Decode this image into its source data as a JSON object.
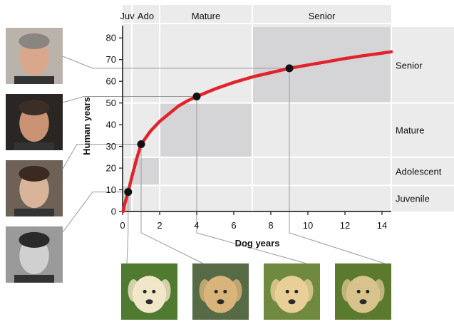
{
  "chart_data": {
    "type": "line",
    "xlabel": "Dog years",
    "ylabel": "Human years",
    "xlim": [
      0,
      14.5
    ],
    "ylim": [
      0,
      85
    ],
    "xticks": [
      0,
      2,
      4,
      6,
      8,
      10,
      12,
      14
    ],
    "yticks": [
      0,
      10,
      20,
      30,
      40,
      50,
      60,
      70,
      80
    ],
    "curve": {
      "color": "#e0242b",
      "points": [
        [
          0.03,
          0
        ],
        [
          0.1,
          3
        ],
        [
          0.2,
          6
        ],
        [
          0.3,
          9
        ],
        [
          0.5,
          16
        ],
        [
          0.75,
          24
        ],
        [
          1,
          31
        ],
        [
          1.5,
          37
        ],
        [
          2,
          41.5
        ],
        [
          2.5,
          45
        ],
        [
          3,
          48.5
        ],
        [
          3.5,
          51
        ],
        [
          4,
          53
        ],
        [
          5,
          56.5
        ],
        [
          6,
          59.5
        ],
        [
          7,
          62
        ],
        [
          8,
          64
        ],
        [
          9,
          66
        ],
        [
          10,
          67.5
        ],
        [
          11,
          69
        ],
        [
          12,
          70.5
        ],
        [
          13,
          71.8
        ],
        [
          14,
          73
        ],
        [
          14.5,
          73.6
        ]
      ]
    },
    "highlighted_points": [
      {
        "x": 0.3,
        "y": 9
      },
      {
        "x": 1,
        "y": 31
      },
      {
        "x": 4,
        "y": 53
      },
      {
        "x": 9,
        "y": 66
      }
    ],
    "dog_stages": [
      {
        "label": "Juv",
        "x_from": 0,
        "x_to": 0.5
      },
      {
        "label": "Ado",
        "x_from": 0.5,
        "x_to": 2
      },
      {
        "label": "Mature",
        "x_from": 2,
        "x_to": 7
      },
      {
        "label": "Senior",
        "x_from": 7,
        "x_to": 14.5
      }
    ],
    "human_stages": [
      {
        "label": "Juvenile",
        "y_from": 0,
        "y_to": 12
      },
      {
        "label": "Adolescent",
        "y_from": 12,
        "y_to": 25
      },
      {
        "label": "Mature",
        "y_from": 25,
        "y_to": 50
      },
      {
        "label": "Senior",
        "y_from": 50,
        "y_to": 85
      }
    ],
    "shaded_regions": [
      {
        "x_from": 0,
        "x_to": 0.5,
        "y_from": 0,
        "y_to": 12
      },
      {
        "x_from": 0.5,
        "x_to": 2,
        "y_from": 12,
        "y_to": 25
      },
      {
        "x_from": 2,
        "x_to": 7,
        "y_from": 25,
        "y_to": 50
      },
      {
        "x_from": 7,
        "x_to": 14.5,
        "y_from": 50,
        "y_to": 85
      }
    ],
    "colors": {
      "band": "#ebebeb",
      "shade": "#d5d5d8",
      "axis": "#111111",
      "point": "#111111",
      "connector": "#9a9a9a"
    }
  },
  "photos": {
    "humans": [
      {
        "name": "human-photo-senior"
      },
      {
        "name": "human-photo-mature"
      },
      {
        "name": "human-photo-adolescent"
      },
      {
        "name": "human-photo-juvenile"
      }
    ],
    "dogs": [
      {
        "name": "dog-photo-puppy"
      },
      {
        "name": "dog-photo-young"
      },
      {
        "name": "dog-photo-adult"
      },
      {
        "name": "dog-photo-senior"
      }
    ]
  }
}
